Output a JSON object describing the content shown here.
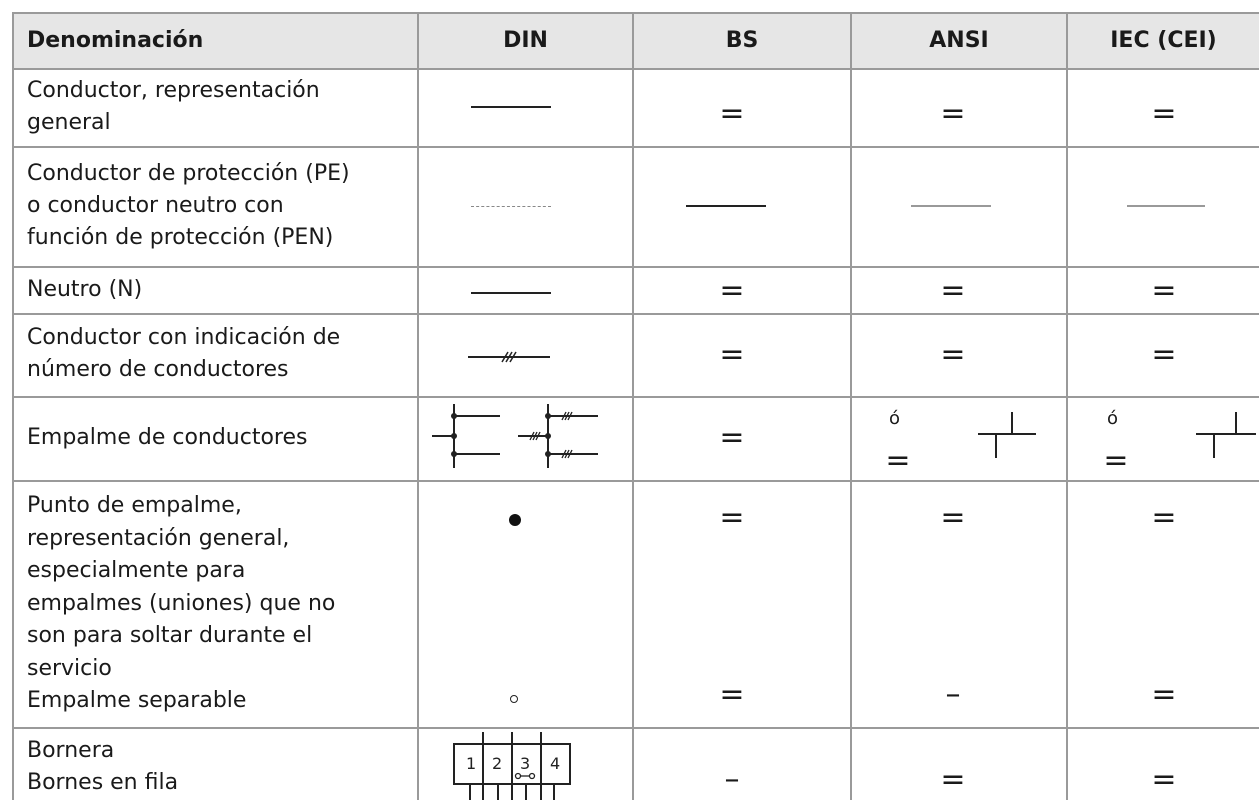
{
  "table": {
    "headers": {
      "denominacion": "Denominación",
      "din": "DIN",
      "bs": "BS",
      "ansi": "ANSI",
      "iec": "IEC (CEI)"
    },
    "rows": [
      {
        "name_lines": [
          "Conductor, representación",
          "general"
        ],
        "din": "line",
        "bs": "=",
        "ansi": "=",
        "iec": "="
      },
      {
        "name_lines": [
          "Conductor de protección (PE)",
          "o conductor neutro con",
          "función de protección (PEN)"
        ],
        "din": "dashed-line",
        "bs": "line",
        "ansi": "gray-line",
        "iec": "gray-line"
      },
      {
        "name_lines": [
          "Neutro (N)"
        ],
        "din": "line",
        "bs": "=",
        "ansi": "=",
        "iec": "="
      },
      {
        "name_lines": [
          "Conductor con indicación de",
          "número de conductores"
        ],
        "din": "line-with-slashes",
        "bs": "=",
        "ansi": "=",
        "iec": "="
      },
      {
        "name_lines": [
          "Empalme de conductores"
        ],
        "din": "junction-symbols",
        "bs": "=",
        "ansi": "ó",
        "ansi_alt": "=",
        "iec": "ó",
        "iec_alt": "="
      },
      {
        "name_lines": [
          "Punto de empalme,",
          "representación general,",
          "especialmente para",
          "empalmes (uniones) que no",
          "son para soltar durante el",
          "servicio",
          "Empalme separable"
        ],
        "din": "dot",
        "din_alt": "circle",
        "bs": "=",
        "bs_alt": "=",
        "ansi": "=",
        "ansi_alt": "–",
        "iec": "=",
        "iec_alt": "="
      },
      {
        "name_lines": [
          "Bornera",
          "Bornes en fila"
        ],
        "din": "terminal-block",
        "din_labels": [
          "1",
          "2",
          "3",
          "4"
        ],
        "bs": "–",
        "ansi": "=",
        "iec": "="
      }
    ]
  }
}
